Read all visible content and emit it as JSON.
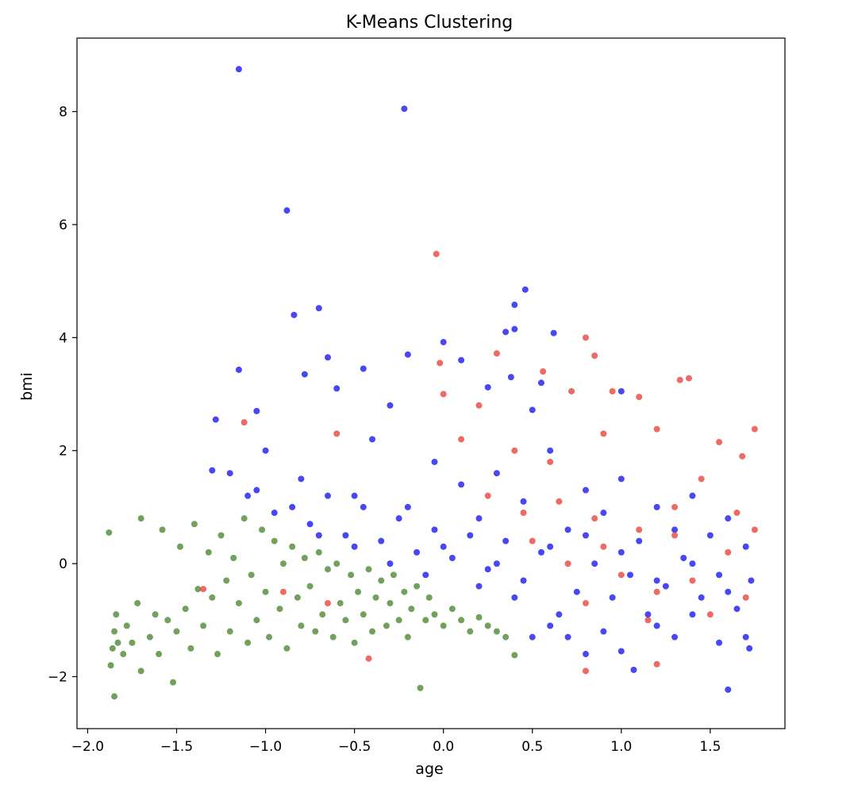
{
  "chart_data": {
    "type": "scatter",
    "title": "K-Means Clustering",
    "xlabel": "age",
    "ylabel": "bmi",
    "xlim": [
      -2.06,
      1.92
    ],
    "ylim": [
      -2.92,
      9.3
    ],
    "x_ticks": [
      -2.0,
      -1.5,
      -1.0,
      -0.5,
      0.0,
      0.5,
      1.0,
      1.5
    ],
    "x_tick_labels": [
      "−2.0",
      "−1.5",
      "−1.0",
      "−0.5",
      "0.0",
      "0.5",
      "1.0",
      "1.5"
    ],
    "y_ticks": [
      -2,
      0,
      2,
      4,
      6,
      8
    ],
    "y_tick_labels": [
      "−2",
      "0",
      "2",
      "4",
      "6",
      "8"
    ],
    "grid": false,
    "legend": "none",
    "colors": {
      "cluster_0": "#3a7d1f",
      "cluster_1": "#0000ee",
      "cluster_2": "#e8312a"
    },
    "series": [
      {
        "color": "#3a7d1f",
        "points": [
          [
            -1.85,
            -1.2
          ],
          [
            -1.86,
            -1.5
          ],
          [
            -1.84,
            -0.9
          ],
          [
            -1.87,
            -1.8
          ],
          [
            -1.83,
            -1.4
          ],
          [
            -1.85,
            -2.35
          ],
          [
            -1.88,
            0.55
          ],
          [
            -1.8,
            -1.6
          ],
          [
            -1.78,
            -1.1
          ],
          [
            -1.75,
            -1.4
          ],
          [
            -1.72,
            -0.7
          ],
          [
            -1.7,
            -1.9
          ],
          [
            -1.7,
            0.8
          ],
          [
            -1.65,
            -1.3
          ],
          [
            -1.62,
            -0.9
          ],
          [
            -1.6,
            -1.6
          ],
          [
            -1.58,
            0.6
          ],
          [
            -1.55,
            -1.0
          ],
          [
            -1.52,
            -2.1
          ],
          [
            -1.5,
            -1.2
          ],
          [
            -1.48,
            0.3
          ],
          [
            -1.45,
            -0.8
          ],
          [
            -1.42,
            -1.5
          ],
          [
            -1.4,
            0.7
          ],
          [
            -1.38,
            -0.45
          ],
          [
            -1.35,
            -1.1
          ],
          [
            -1.32,
            0.2
          ],
          [
            -1.3,
            -0.6
          ],
          [
            -1.27,
            -1.6
          ],
          [
            -1.25,
            0.5
          ],
          [
            -1.22,
            -0.3
          ],
          [
            -1.2,
            -1.2
          ],
          [
            -1.18,
            0.1
          ],
          [
            -1.15,
            -0.7
          ],
          [
            -1.12,
            0.8
          ],
          [
            -1.1,
            -1.4
          ],
          [
            -1.08,
            -0.2
          ],
          [
            -1.05,
            -1.0
          ],
          [
            -1.02,
            0.6
          ],
          [
            -1.0,
            -0.5
          ],
          [
            -0.98,
            -1.3
          ],
          [
            -0.95,
            0.4
          ],
          [
            -0.92,
            -0.8
          ],
          [
            -0.9,
            0.0
          ],
          [
            -0.88,
            -1.5
          ],
          [
            -0.85,
            0.3
          ],
          [
            -0.82,
            -0.6
          ],
          [
            -0.8,
            -1.1
          ],
          [
            -0.78,
            0.1
          ],
          [
            -0.75,
            -0.4
          ],
          [
            -0.72,
            -1.2
          ],
          [
            -0.7,
            0.2
          ],
          [
            -0.68,
            -0.9
          ],
          [
            -0.65,
            -0.1
          ],
          [
            -0.62,
            -1.3
          ],
          [
            -0.6,
            0.0
          ],
          [
            -0.58,
            -0.7
          ],
          [
            -0.55,
            -1.0
          ],
          [
            -0.52,
            -0.2
          ],
          [
            -0.5,
            -1.4
          ],
          [
            -0.48,
            -0.5
          ],
          [
            -0.45,
            -0.9
          ],
          [
            -0.42,
            -0.1
          ],
          [
            -0.4,
            -1.2
          ],
          [
            -0.38,
            -0.6
          ],
          [
            -0.35,
            -0.3
          ],
          [
            -0.32,
            -1.1
          ],
          [
            -0.3,
            -0.7
          ],
          [
            -0.28,
            -0.2
          ],
          [
            -0.25,
            -1.0
          ],
          [
            -0.22,
            -0.5
          ],
          [
            -0.2,
            -1.3
          ],
          [
            -0.18,
            -0.8
          ],
          [
            -0.15,
            -0.4
          ],
          [
            -0.13,
            -2.2
          ],
          [
            -0.1,
            -1.0
          ],
          [
            -0.08,
            -0.6
          ],
          [
            -0.05,
            -0.9
          ],
          [
            0.0,
            -1.1
          ],
          [
            0.05,
            -0.8
          ],
          [
            0.1,
            -1.0
          ],
          [
            0.15,
            -1.2
          ],
          [
            0.2,
            -0.95
          ],
          [
            0.25,
            -1.1
          ],
          [
            0.3,
            -1.2
          ],
          [
            0.35,
            -1.3
          ],
          [
            0.4,
            -1.62
          ]
        ]
      },
      {
        "color": "#0000ee",
        "points": [
          [
            -1.15,
            8.75
          ],
          [
            -0.22,
            8.05
          ],
          [
            -0.88,
            6.25
          ],
          [
            0.46,
            4.85
          ],
          [
            -0.7,
            4.52
          ],
          [
            -0.84,
            4.4
          ],
          [
            0.4,
            4.58
          ],
          [
            0.4,
            4.15
          ],
          [
            0.35,
            4.1
          ],
          [
            0.62,
            4.08
          ],
          [
            0.0,
            3.92
          ],
          [
            -0.2,
            3.7
          ],
          [
            -0.65,
            3.65
          ],
          [
            -1.15,
            3.43
          ],
          [
            -0.78,
            3.35
          ],
          [
            -0.45,
            3.45
          ],
          [
            0.38,
            3.3
          ],
          [
            0.5,
            2.72
          ],
          [
            0.1,
            3.6
          ],
          [
            0.25,
            3.12
          ],
          [
            -1.28,
            2.55
          ],
          [
            -1.05,
            2.7
          ],
          [
            -0.6,
            3.1
          ],
          [
            -0.3,
            2.8
          ],
          [
            0.55,
            3.2
          ],
          [
            1.0,
            3.05
          ],
          [
            -1.2,
            1.6
          ],
          [
            -1.0,
            2.0
          ],
          [
            -0.8,
            1.5
          ],
          [
            -0.5,
            1.2
          ],
          [
            -0.4,
            2.2
          ],
          [
            -0.2,
            1.0
          ],
          [
            -0.05,
            1.8
          ],
          [
            0.1,
            1.4
          ],
          [
            0.2,
            0.8
          ],
          [
            0.3,
            1.6
          ],
          [
            0.45,
            1.1
          ],
          [
            0.6,
            2.0
          ],
          [
            0.7,
            0.6
          ],
          [
            0.8,
            1.3
          ],
          [
            0.9,
            0.9
          ],
          [
            1.0,
            1.5
          ],
          [
            1.1,
            0.4
          ],
          [
            1.2,
            1.0
          ],
          [
            1.3,
            0.6
          ],
          [
            1.4,
            1.2
          ],
          [
            1.5,
            0.5
          ],
          [
            1.6,
            0.8
          ],
          [
            1.7,
            0.3
          ],
          [
            1.73,
            -0.3
          ],
          [
            1.65,
            -0.8
          ],
          [
            1.55,
            -0.2
          ],
          [
            1.45,
            -0.6
          ],
          [
            1.35,
            0.1
          ],
          [
            1.25,
            -0.4
          ],
          [
            1.15,
            -0.9
          ],
          [
            1.05,
            -0.2
          ],
          [
            0.95,
            -0.6
          ],
          [
            0.85,
            0.0
          ],
          [
            0.75,
            -0.5
          ],
          [
            0.65,
            -0.9
          ],
          [
            0.55,
            0.2
          ],
          [
            0.45,
            -0.3
          ],
          [
            0.35,
            0.4
          ],
          [
            0.25,
            -0.1
          ],
          [
            0.15,
            0.5
          ],
          [
            0.05,
            0.1
          ],
          [
            -0.05,
            0.6
          ],
          [
            -0.15,
            0.2
          ],
          [
            -0.25,
            0.8
          ],
          [
            -0.35,
            0.4
          ],
          [
            -0.45,
            1.0
          ],
          [
            -0.55,
            0.5
          ],
          [
            -0.65,
            1.2
          ],
          [
            -0.75,
            0.7
          ],
          [
            -0.85,
            1.0
          ],
          [
            -0.95,
            0.9
          ],
          [
            -1.05,
            1.3
          ],
          [
            0.5,
            -1.3
          ],
          [
            0.6,
            -1.1
          ],
          [
            0.7,
            -1.3
          ],
          [
            0.8,
            -1.6
          ],
          [
            1.0,
            -1.55
          ],
          [
            1.07,
            -1.88
          ],
          [
            1.3,
            -1.3
          ],
          [
            1.55,
            -1.4
          ],
          [
            1.6,
            -2.23
          ],
          [
            1.72,
            -1.5
          ],
          [
            0.9,
            -1.2
          ],
          [
            1.2,
            -1.1
          ],
          [
            1.4,
            -0.9
          ],
          [
            1.7,
            -1.3
          ],
          [
            0.3,
            0.0
          ],
          [
            0.2,
            -0.4
          ],
          [
            0.4,
            -0.6
          ],
          [
            0.6,
            0.3
          ],
          [
            0.8,
            0.5
          ],
          [
            1.0,
            0.2
          ],
          [
            1.2,
            -0.3
          ],
          [
            1.4,
            0.0
          ],
          [
            1.6,
            -0.5
          ],
          [
            0.0,
            0.3
          ],
          [
            -0.1,
            -0.2
          ],
          [
            -0.3,
            0.0
          ],
          [
            -0.5,
            0.3
          ],
          [
            -0.7,
            0.5
          ],
          [
            -1.3,
            1.65
          ],
          [
            -1.1,
            1.2
          ]
        ]
      },
      {
        "color": "#e8312a",
        "points": [
          [
            -0.04,
            5.48
          ],
          [
            0.8,
            4.0
          ],
          [
            0.3,
            3.72
          ],
          [
            0.85,
            3.68
          ],
          [
            0.56,
            3.4
          ],
          [
            0.95,
            3.05
          ],
          [
            1.38,
            3.28
          ],
          [
            1.33,
            3.25
          ],
          [
            1.1,
            2.95
          ],
          [
            0.72,
            3.05
          ],
          [
            0.2,
            2.8
          ],
          [
            -0.02,
            3.55
          ],
          [
            0.0,
            3.0
          ],
          [
            -1.12,
            2.5
          ],
          [
            -0.6,
            2.3
          ],
          [
            0.1,
            2.2
          ],
          [
            0.4,
            2.0
          ],
          [
            0.6,
            1.8
          ],
          [
            0.9,
            2.3
          ],
          [
            1.2,
            2.38
          ],
          [
            1.55,
            2.15
          ],
          [
            1.75,
            2.38
          ],
          [
            1.68,
            1.9
          ],
          [
            1.45,
            1.5
          ],
          [
            1.3,
            1.0
          ],
          [
            1.1,
            0.6
          ],
          [
            0.9,
            0.3
          ],
          [
            0.7,
            0.0
          ],
          [
            0.5,
            0.4
          ],
          [
            1.0,
            -0.2
          ],
          [
            1.2,
            -0.5
          ],
          [
            1.4,
            -0.3
          ],
          [
            1.6,
            0.2
          ],
          [
            1.7,
            -0.6
          ],
          [
            1.5,
            -0.9
          ],
          [
            0.8,
            -0.7
          ],
          [
            1.3,
            0.5
          ],
          [
            1.15,
            -1.0
          ],
          [
            0.8,
            -1.9
          ],
          [
            1.2,
            -1.78
          ],
          [
            -0.42,
            -1.68
          ],
          [
            -1.35,
            -0.45
          ],
          [
            -0.65,
            -0.7
          ],
          [
            -0.9,
            -0.5
          ],
          [
            1.75,
            0.6
          ],
          [
            1.65,
            0.9
          ],
          [
            0.25,
            1.2
          ],
          [
            0.45,
            0.9
          ],
          [
            0.65,
            1.1
          ],
          [
            0.85,
            0.8
          ]
        ]
      }
    ]
  }
}
